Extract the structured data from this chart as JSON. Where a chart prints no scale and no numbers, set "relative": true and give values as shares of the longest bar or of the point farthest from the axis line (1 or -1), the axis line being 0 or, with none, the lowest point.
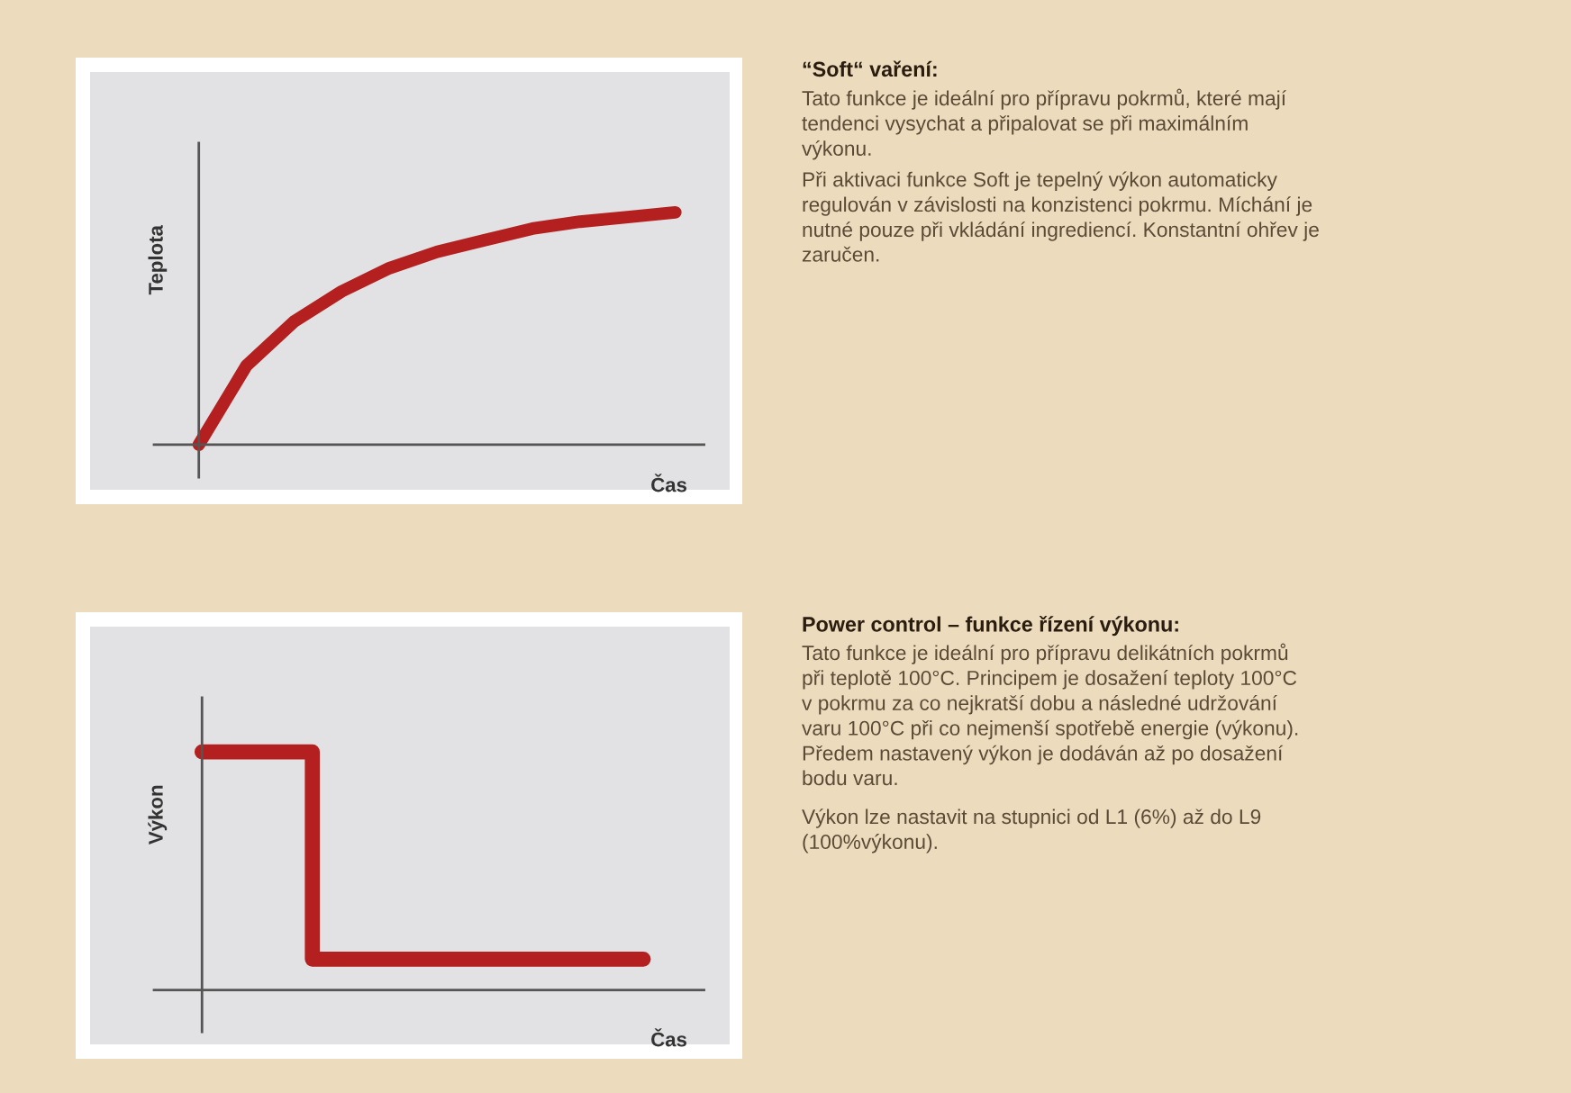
{
  "chart_data": [
    {
      "type": "line",
      "relative": true,
      "xlabel": "Čas",
      "ylabel": "Teplota",
      "categories": [
        null,
        null,
        null,
        null,
        null,
        null,
        null,
        null,
        null,
        null,
        null
      ],
      "series": [
        {
          "color": "#b3201f",
          "values": [
            0,
            0.34,
            0.53,
            0.66,
            0.76,
            0.83,
            0.88,
            0.93,
            0.96,
            0.98,
            1.0
          ]
        }
      ]
    },
    {
      "type": "other",
      "title": "“Soft“ vaření:",
      "annotations": [
        "Tato funkce je ideální pro přípravu pokrmů, které mají\ntendenci vysychat a připalovat se při maximálním\nvýkonu.",
        "Při aktivaci funkce Soft je tepelný výkon automaticky\nregulován v závislosti na konzistenci pokrmu. Míchání je\nnutné pouze při vkládání ingrediencí. Konstantní ohřev je\nzaručen."
      ]
    },
    {
      "type": "step",
      "relative": true,
      "xlabel": "Čas",
      "ylabel": "Výkon",
      "categories": [
        null,
        null,
        null,
        null,
        null
      ],
      "series": [
        {
          "color": "#b3201f",
          "values": [
            1.0,
            0.13,
            0.13,
            0.13,
            0.13
          ]
        }
      ]
    },
    {
      "type": "other",
      "title": "Power control – funkce řízení výkonu:",
      "annotations": [
        "Tato funkce je ideální pro přípravu delikátních pokrmů\npři teplotě 100°C. Principem je dosažení teploty 100°C\nv pokrmu za co nejkratší dobu a následné udržování\nvaru 100°C při co nejmenší spotřebě energie (výkonu).\nPředem nastavený výkon je dodáván až po dosažení\nbodu varu.",
        "Výkon lze nastavit na stupnici od L1 (6%) až do L9\n(100%výkonu)."
      ]
    }
  ]
}
